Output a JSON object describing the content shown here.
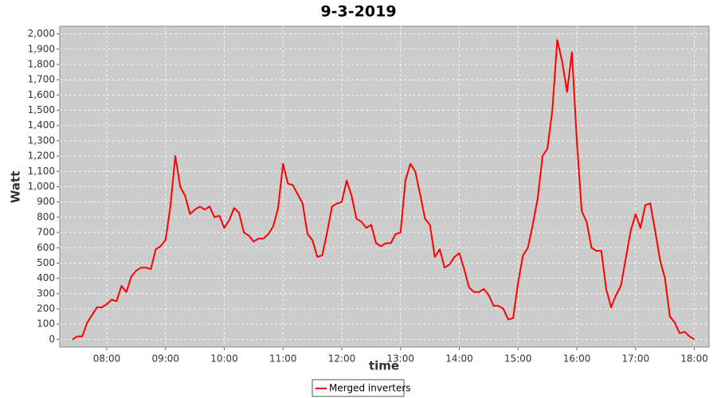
{
  "chart_data": {
    "type": "line",
    "title": "9-3-2019",
    "x_label": "time",
    "y_label": "Watt",
    "x": [
      "07:25",
      "07:30",
      "07:35",
      "07:40",
      "07:45",
      "07:50",
      "07:55",
      "08:00",
      "08:05",
      "08:10",
      "08:15",
      "08:20",
      "08:25",
      "08:30",
      "08:35",
      "08:40",
      "08:45",
      "08:50",
      "08:55",
      "09:00",
      "09:05",
      "09:10",
      "09:15",
      "09:20",
      "09:25",
      "09:30",
      "09:35",
      "09:40",
      "09:45",
      "09:50",
      "09:55",
      "10:00",
      "10:05",
      "10:10",
      "10:15",
      "10:20",
      "10:25",
      "10:30",
      "10:35",
      "10:40",
      "10:45",
      "10:50",
      "10:55",
      "11:00",
      "11:05",
      "11:10",
      "11:15",
      "11:20",
      "11:25",
      "11:30",
      "11:35",
      "11:40",
      "11:45",
      "11:50",
      "11:55",
      "12:00",
      "12:05",
      "12:10",
      "12:15",
      "12:20",
      "12:25",
      "12:30",
      "12:35",
      "12:40",
      "12:45",
      "12:50",
      "12:55",
      "13:00",
      "13:05",
      "13:10",
      "13:15",
      "13:20",
      "13:25",
      "13:30",
      "13:35",
      "13:40",
      "13:45",
      "13:50",
      "13:55",
      "14:00",
      "14:05",
      "14:10",
      "14:15",
      "14:20",
      "14:25",
      "14:30",
      "14:35",
      "14:40",
      "14:45",
      "14:50",
      "14:55",
      "15:00",
      "15:05",
      "15:10",
      "15:15",
      "15:20",
      "15:25",
      "15:30",
      "15:35",
      "15:40",
      "15:45",
      "15:50",
      "15:55",
      "16:00",
      "16:05",
      "16:10",
      "16:15",
      "16:20",
      "16:25",
      "16:30",
      "16:35",
      "16:40",
      "16:45",
      "16:50",
      "16:55",
      "17:00",
      "17:05",
      "17:10",
      "17:15",
      "17:20",
      "17:25",
      "17:30",
      "17:35",
      "17:40",
      "17:45",
      "17:50",
      "17:55",
      "18:00"
    ],
    "series": [
      {
        "name": "Merged inverters",
        "color": "#ff0000",
        "values": [
          0,
          20,
          20,
          110,
          160,
          210,
          210,
          230,
          260,
          250,
          350,
          310,
          410,
          450,
          470,
          470,
          460,
          590,
          610,
          650,
          870,
          1200,
          1000,
          940,
          820,
          850,
          870,
          850,
          870,
          800,
          810,
          730,
          780,
          860,
          830,
          700,
          680,
          640,
          660,
          660,
          690,
          740,
          860,
          1150,
          1020,
          1010,
          950,
          890,
          690,
          650,
          540,
          550,
          700,
          870,
          890,
          900,
          1040,
          940,
          790,
          770,
          730,
          750,
          630,
          610,
          630,
          630,
          690,
          700,
          1040,
          1150,
          1100,
          950,
          790,
          750,
          540,
          590,
          470,
          490,
          540,
          565,
          460,
          340,
          310,
          310,
          330,
          290,
          220,
          220,
          200,
          130,
          140,
          370,
          550,
          600,
          750,
          920,
          1200,
          1250,
          1500,
          1960,
          1820,
          1620,
          1880,
          1300,
          840,
          770,
          600,
          580,
          580,
          330,
          210,
          290,
          350,
          530,
          710,
          820,
          730,
          880,
          890,
          710,
          520,
          400,
          150,
          110,
          40,
          50,
          20,
          0
        ]
      }
    ],
    "xlim": [
      "07:12",
      "18:15"
    ],
    "xticks": [
      "08:00",
      "09:00",
      "10:00",
      "11:00",
      "12:00",
      "13:00",
      "14:00",
      "15:00",
      "16:00",
      "17:00",
      "18:00"
    ],
    "ylim": [
      -50,
      2050
    ],
    "yticks": [
      0,
      100,
      200,
      300,
      400,
      500,
      600,
      700,
      800,
      900,
      {
        "value": 1000,
        "label": "1,000"
      },
      {
        "value": 1100,
        "label": "1,100"
      },
      {
        "value": 1200,
        "label": "1,200"
      },
      {
        "value": 1300,
        "label": "1,300"
      },
      {
        "value": 1400,
        "label": "1,400"
      },
      {
        "value": 1500,
        "label": "1,500"
      },
      {
        "value": 1600,
        "label": "1,600"
      },
      {
        "value": 1700,
        "label": "1,700"
      },
      {
        "value": 1800,
        "label": "1,800"
      },
      {
        "value": 1900,
        "label": "1,900"
      },
      {
        "value": 2000,
        "label": "2,000"
      }
    ],
    "grid": true,
    "legend": "bottom"
  }
}
